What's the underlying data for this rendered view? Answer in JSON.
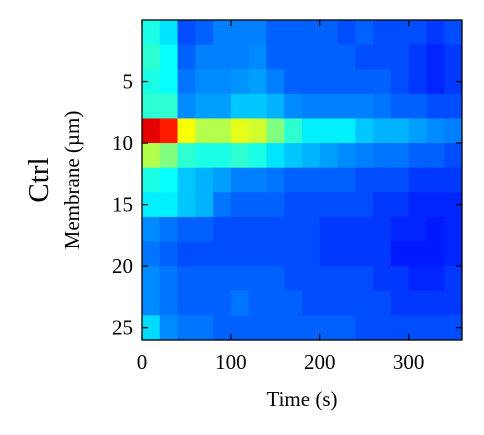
{
  "chart_data": {
    "type": "heatmap",
    "title": "",
    "group_label": "Ctrl",
    "xlabel": "Time (s)",
    "ylabel": "Membrane (µm)",
    "xlim": [
      0,
      360
    ],
    "ylim": [
      26,
      0
    ],
    "y_inverted": true,
    "x_ticks": [
      0,
      100,
      200,
      300
    ],
    "x_tick_labels": [
      "0",
      "100",
      "200",
      "300"
    ],
    "y_ticks": [
      5,
      10,
      15,
      20,
      25
    ],
    "y_tick_labels": [
      "5",
      "10",
      "15",
      "20",
      "25"
    ],
    "colormap": "jet",
    "colorbar": false,
    "grid": false,
    "time_bins": [
      0,
      20,
      40,
      60,
      80,
      100,
      120,
      140,
      160,
      180,
      200,
      220,
      240,
      260,
      280,
      300,
      320,
      340,
      360
    ],
    "membrane_bins": [
      0,
      2,
      4,
      6,
      8,
      10,
      12,
      14,
      16,
      18,
      20,
      22,
      24,
      26
    ],
    "intensity_grid": [
      [
        0.4,
        0.35,
        0.2,
        0.22,
        0.25,
        0.25,
        0.25,
        0.22,
        0.22,
        0.22,
        0.22,
        0.2,
        0.22,
        0.2,
        0.2,
        0.2,
        0.18,
        0.2,
        0.2
      ],
      [
        0.42,
        0.38,
        0.22,
        0.25,
        0.25,
        0.25,
        0.26,
        0.22,
        0.22,
        0.22,
        0.22,
        0.22,
        0.2,
        0.2,
        0.2,
        0.18,
        0.16,
        0.18,
        0.18
      ],
      [
        0.4,
        0.38,
        0.24,
        0.26,
        0.26,
        0.27,
        0.28,
        0.25,
        0.22,
        0.22,
        0.22,
        0.22,
        0.22,
        0.22,
        0.2,
        0.18,
        0.16,
        0.18,
        0.18
      ],
      [
        0.42,
        0.42,
        0.26,
        0.28,
        0.28,
        0.32,
        0.32,
        0.3,
        0.26,
        0.25,
        0.25,
        0.25,
        0.25,
        0.24,
        0.22,
        0.22,
        0.2,
        0.2,
        0.2
      ],
      [
        0.9,
        0.85,
        0.62,
        0.55,
        0.55,
        0.6,
        0.58,
        0.5,
        0.42,
        0.36,
        0.36,
        0.36,
        0.32,
        0.3,
        0.3,
        0.28,
        0.26,
        0.25,
        0.25
      ],
      [
        0.55,
        0.5,
        0.42,
        0.4,
        0.4,
        0.42,
        0.4,
        0.35,
        0.32,
        0.3,
        0.28,
        0.26,
        0.25,
        0.24,
        0.24,
        0.22,
        0.22,
        0.2,
        0.2
      ],
      [
        0.4,
        0.38,
        0.32,
        0.3,
        0.28,
        0.25,
        0.25,
        0.24,
        0.22,
        0.22,
        0.22,
        0.22,
        0.2,
        0.2,
        0.2,
        0.18,
        0.18,
        0.18,
        0.18
      ],
      [
        0.36,
        0.36,
        0.32,
        0.3,
        0.24,
        0.22,
        0.22,
        0.22,
        0.2,
        0.2,
        0.2,
        0.2,
        0.2,
        0.18,
        0.18,
        0.16,
        0.16,
        0.16,
        0.16
      ],
      [
        0.26,
        0.24,
        0.22,
        0.22,
        0.2,
        0.2,
        0.2,
        0.2,
        0.2,
        0.2,
        0.18,
        0.18,
        0.18,
        0.18,
        0.16,
        0.16,
        0.15,
        0.16,
        0.16
      ],
      [
        0.24,
        0.22,
        0.2,
        0.2,
        0.2,
        0.2,
        0.2,
        0.2,
        0.2,
        0.2,
        0.18,
        0.18,
        0.18,
        0.18,
        0.15,
        0.15,
        0.15,
        0.16,
        0.16
      ],
      [
        0.26,
        0.24,
        0.22,
        0.22,
        0.22,
        0.22,
        0.22,
        0.22,
        0.2,
        0.2,
        0.2,
        0.2,
        0.2,
        0.18,
        0.18,
        0.16,
        0.16,
        0.18,
        0.18
      ],
      [
        0.26,
        0.24,
        0.22,
        0.22,
        0.22,
        0.24,
        0.22,
        0.22,
        0.22,
        0.2,
        0.2,
        0.2,
        0.2,
        0.2,
        0.18,
        0.18,
        0.18,
        0.18,
        0.18
      ],
      [
        0.34,
        0.26,
        0.24,
        0.24,
        0.22,
        0.22,
        0.22,
        0.22,
        0.22,
        0.22,
        0.22,
        0.22,
        0.2,
        0.2,
        0.2,
        0.2,
        0.2,
        0.2,
        0.2
      ]
    ],
    "axis_color": "#000000"
  }
}
